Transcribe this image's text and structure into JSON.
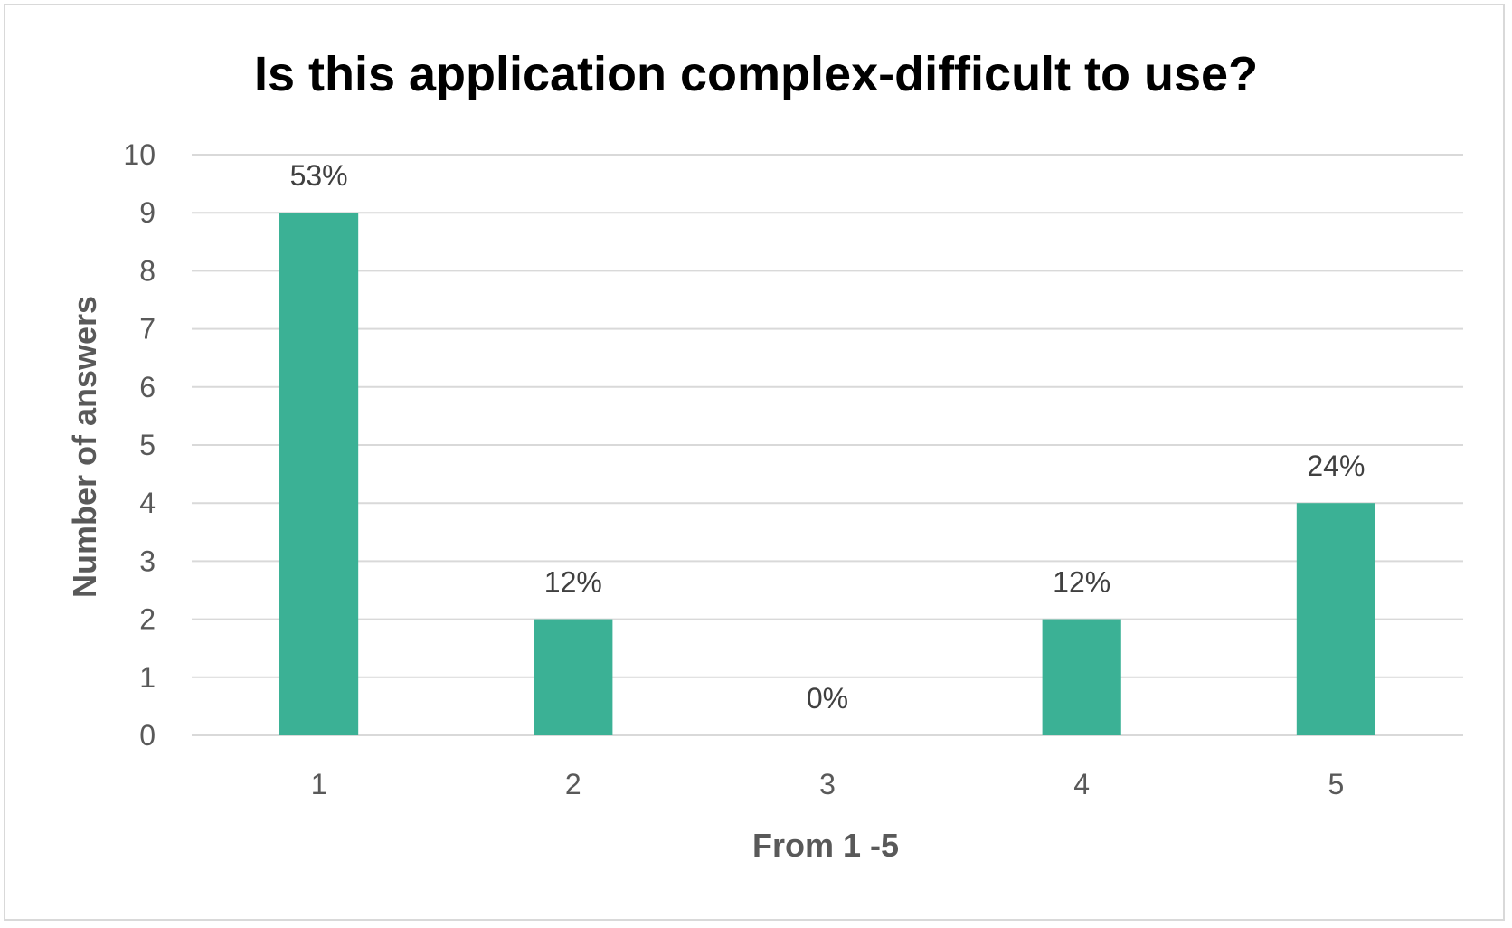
{
  "chart_data": {
    "type": "bar",
    "title": "Is this application complex-difficult to use?",
    "xlabel": "From 1 -5",
    "ylabel": "Number of answers",
    "categories": [
      "1",
      "2",
      "3",
      "4",
      "5"
    ],
    "values": [
      9,
      2,
      0,
      2,
      4
    ],
    "data_labels": [
      "53%",
      "12%",
      "0%",
      "12%",
      "24%"
    ],
    "yticks": [
      "0",
      "1",
      "2",
      "3",
      "4",
      "5",
      "6",
      "7",
      "8",
      "9",
      "10"
    ],
    "ylim": [
      0,
      10
    ],
    "grid": true,
    "legend": "none",
    "bar_color": "#3bb195",
    "grid_color": "#d9d9d9"
  }
}
